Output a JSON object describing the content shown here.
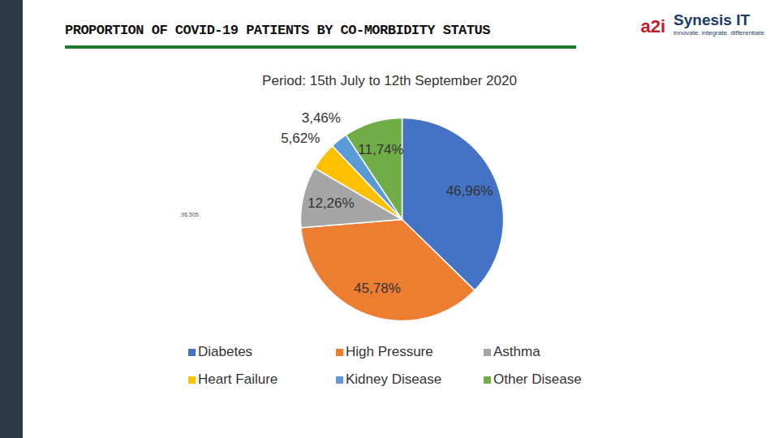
{
  "chart_data": {
    "type": "pie",
    "title": "PROPORTION OF COVID-19 PATIENTS BY CO-MORBIDITY STATUS",
    "subtitle": "Period: 15th July to 12th September 2020",
    "categories": [
      "Diabetes",
      "High Pressure",
      "Asthma",
      "Heart Failure",
      "Kidney Disease",
      "Other Disease"
    ],
    "values": [
      46.96,
      45.78,
      12.26,
      5.62,
      3.46,
      11.74
    ],
    "value_labels": [
      "46,96%",
      "45,78%",
      "12,26%",
      "5,62%",
      "3,46%",
      "11,74%"
    ],
    "colors": [
      "#4472c4",
      "#ed7d31",
      "#a5a5a5",
      "#ffc000",
      "#5b9bd5",
      "#70ad47"
    ],
    "data_labels": true,
    "legend": "bottom",
    "annotations": [
      ",96,505"
    ],
    "logos": [
      "a2i",
      "Synesis IT",
      "innovate. integrate. differentiate"
    ]
  }
}
